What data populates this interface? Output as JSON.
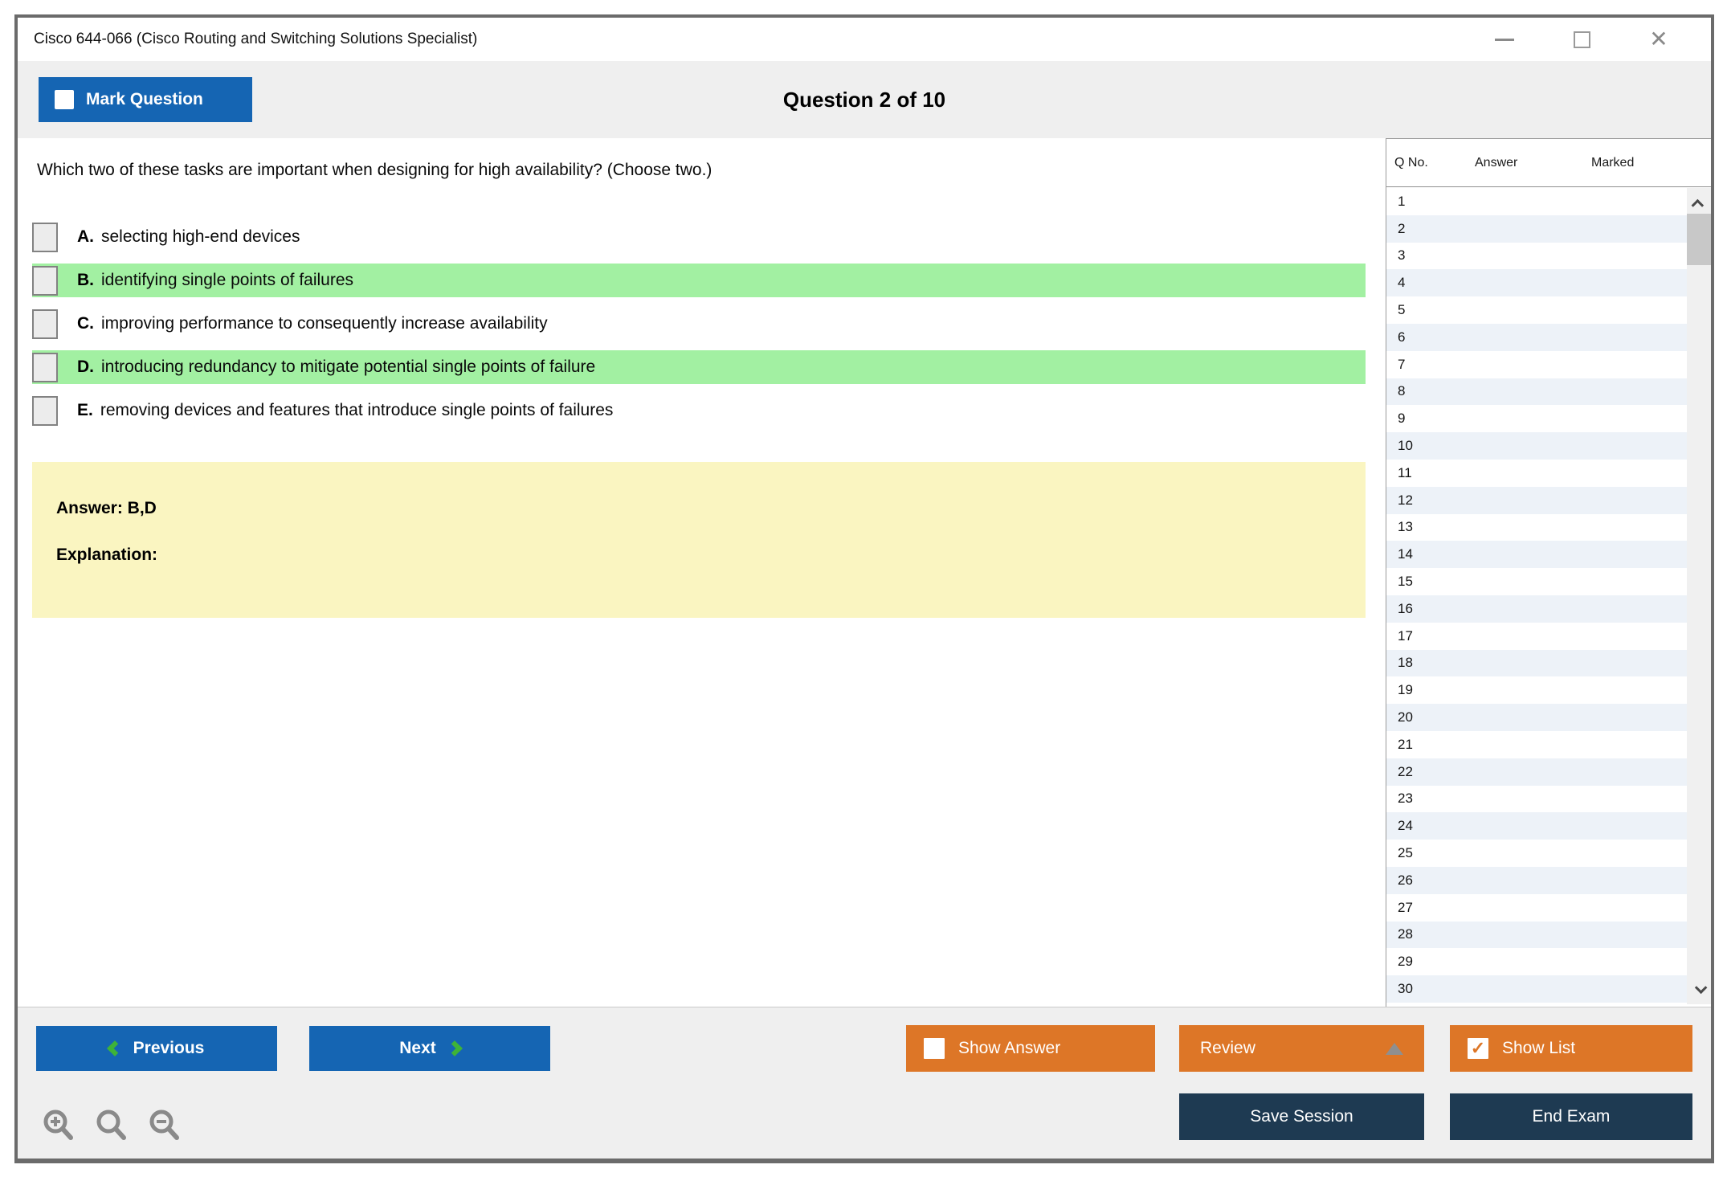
{
  "window": {
    "title": "Cisco 644-066 (Cisco Routing and Switching Solutions Specialist)",
    "controls": {
      "minimize_icon": "minimize",
      "maximize_icon": "maximize",
      "close_icon": "✕"
    }
  },
  "header": {
    "mark_question_label": "Mark Question",
    "question_counter": "Question 2 of 10"
  },
  "question": {
    "text": "Which two of these tasks are important when designing for high availability? (Choose two.)",
    "options": [
      {
        "letter": "A.",
        "text": "selecting high-end devices",
        "highlighted": false
      },
      {
        "letter": "B.",
        "text": "identifying single points of failures",
        "highlighted": true
      },
      {
        "letter": "C.",
        "text": "improving performance to consequently increase availability",
        "highlighted": false
      },
      {
        "letter": "D.",
        "text": "introducing redundancy to mitigate potential single points of failure",
        "highlighted": true
      },
      {
        "letter": "E.",
        "text": "removing devices and features that introduce single points of failures",
        "highlighted": false
      }
    ],
    "answer_label": "Answer: B,D",
    "explanation_label": "Explanation:"
  },
  "sidebar": {
    "columns": [
      "Q No.",
      "Answer",
      "Marked"
    ],
    "rows": [
      "1",
      "2",
      "3",
      "4",
      "5",
      "6",
      "7",
      "8",
      "9",
      "10",
      "11",
      "12",
      "13",
      "14",
      "15",
      "16",
      "17",
      "18",
      "19",
      "20",
      "21",
      "22",
      "23",
      "24",
      "25",
      "26",
      "27",
      "28",
      "29",
      "30"
    ]
  },
  "toolbar": {
    "previous_label": "Previous",
    "next_label": "Next",
    "show_answer_label": "Show Answer",
    "review_label": "Review",
    "show_list_label": "Show List",
    "show_list_checked": "✓",
    "save_session_label": "Save Session",
    "end_exam_label": "End Exam",
    "zoom_icons": [
      "zoom-in-icon",
      "zoom-icon",
      "zoom-out-icon"
    ]
  },
  "colors": {
    "accent_blue": "#1565b3",
    "accent_orange": "#dd7627",
    "accent_navy": "#1e3a52",
    "highlight_green": "#a2f0a2",
    "answer_box_yellow": "#faf5c1",
    "chevron_green": "#3eb338",
    "header_gray": "#efefef",
    "alt_row_blue": "#edf2f8"
  }
}
